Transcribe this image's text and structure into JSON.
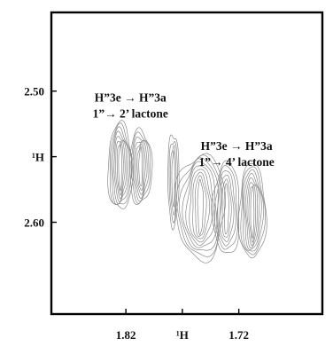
{
  "chart_data": {
    "type": "contour",
    "title": "",
    "xlabel": "¹H",
    "ylabel": "¹H",
    "x_axis": {
      "range": [
        1.886,
        1.646
      ],
      "reversed": true,
      "ticks": [
        {
          "value": 1.82,
          "label": "1.82"
        },
        {
          "value": 1.77,
          "label": "¹H"
        },
        {
          "value": 1.72,
          "label": "1.72"
        }
      ]
    },
    "y_axis": {
      "range": [
        2.44,
        2.67
      ],
      "reversed": true,
      "ticks": [
        {
          "value": 2.5,
          "label": "2.50"
        },
        {
          "value": 2.55,
          "label": "¹H"
        },
        {
          "value": 2.6,
          "label": "2.60"
        }
      ]
    },
    "grid": false,
    "legend": "none",
    "contour_color": "#8a8a8a",
    "annotations": [
      {
        "lines": [
          "H”3e → H”3a",
          "1”→ 2’ lactone"
        ],
        "x": 1.816,
        "y": 2.508
      },
      {
        "lines": [
          "H”3e → H”3a",
          "1”→ 4’ lactone"
        ],
        "x": 1.722,
        "y": 2.545
      }
    ],
    "peaks": [
      {
        "name": "1-2 lactone left lobe",
        "x": 1.825,
        "y": 2.558,
        "hx": 0.011,
        "hy": 0.033,
        "levels": 8
      },
      {
        "name": "1-2 lactone right lobe",
        "x": 1.807,
        "y": 2.558,
        "hx": 0.01,
        "hy": 0.028,
        "levels": 7
      },
      {
        "name": "bridge ridge",
        "x": 1.778,
        "y": 2.567,
        "hx": 0.005,
        "hy": 0.035,
        "levels": 4
      },
      {
        "name": "1-4 lactone left lobe",
        "x": 1.754,
        "y": 2.588,
        "hx": 0.022,
        "hy": 0.04,
        "levels": 9
      },
      {
        "name": "1-4 lactone centre lobe",
        "x": 1.731,
        "y": 2.59,
        "hx": 0.012,
        "hy": 0.035,
        "levels": 6
      },
      {
        "name": "1-4 lactone right lobe",
        "x": 1.708,
        "y": 2.592,
        "hx": 0.012,
        "hy": 0.036,
        "levels": 8
      }
    ]
  }
}
